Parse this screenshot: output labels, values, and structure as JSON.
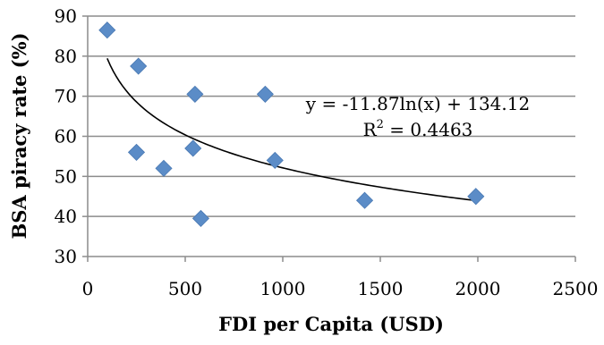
{
  "chart_data": {
    "type": "scatter",
    "xlabel": "FDI per Capita (USD)",
    "ylabel": "BSA piracy rate (%)",
    "xlim": [
      0,
      2500
    ],
    "ylim": [
      30,
      90
    ],
    "x_ticks": [
      {
        "value": 0,
        "label": "0"
      },
      {
        "value": 500,
        "label": "500"
      },
      {
        "value": 1000,
        "label": "1000"
      },
      {
        "value": 1500,
        "label": "1500"
      },
      {
        "value": 2000,
        "label": "2000"
      },
      {
        "value": 2500,
        "label": "2500"
      }
    ],
    "y_ticks": [
      {
        "value": 30,
        "label": "30"
      },
      {
        "value": 40,
        "label": "40"
      },
      {
        "value": 50,
        "label": "50"
      },
      {
        "value": 60,
        "label": "60"
      },
      {
        "value": 70,
        "label": "70"
      },
      {
        "value": 80,
        "label": "80"
      },
      {
        "value": 90,
        "label": "90"
      }
    ],
    "grid": "horizontal",
    "marker_color": "#5b8cc7",
    "points": [
      {
        "x": 100,
        "y": 86.5
      },
      {
        "x": 250,
        "y": 56
      },
      {
        "x": 260,
        "y": 77.5
      },
      {
        "x": 390,
        "y": 52
      },
      {
        "x": 540,
        "y": 57
      },
      {
        "x": 550,
        "y": 70.5
      },
      {
        "x": 580,
        "y": 39.5
      },
      {
        "x": 910,
        "y": 70.5
      },
      {
        "x": 960,
        "y": 54
      },
      {
        "x": 1420,
        "y": 44
      },
      {
        "x": 1990,
        "y": 45
      }
    ],
    "trendline": {
      "type": "logarithmic",
      "a": -11.87,
      "b": 134.12,
      "x_range": [
        100,
        1990
      ],
      "equation_prefix": "y = -11.87ln(x) + 134.12",
      "r2_prefix": "R",
      "r2_superscript": "2",
      "r2_suffix": " = 0.4463"
    }
  }
}
